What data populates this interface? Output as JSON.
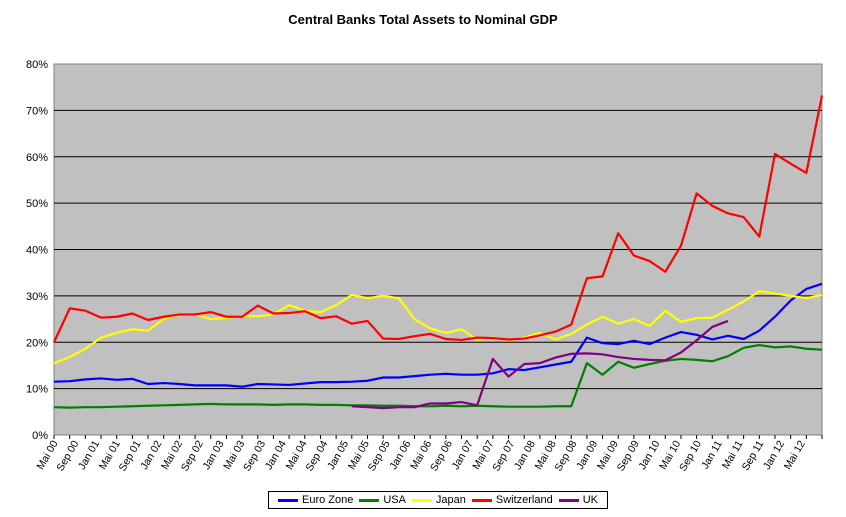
{
  "chart_data": {
    "type": "line",
    "title": "Central Banks Total Assets to Nominal GDP",
    "xlabel": "",
    "ylabel": "",
    "ylim": [
      0,
      80
    ],
    "y_ticks": [
      "0%",
      "10%",
      "20%",
      "30%",
      "40%",
      "50%",
      "60%",
      "70%",
      "80%"
    ],
    "x_tick_labels": [
      "Mai 00",
      "Sep 00",
      "Jan 01",
      "Mai 01",
      "Sep 01",
      "Jan 02",
      "Mai 02",
      "Sep 02",
      "Jan 03",
      "Mai 03",
      "Sep 03",
      "Jan 04",
      "Mai 04",
      "Sep 04",
      "Jan 05",
      "Mai 05",
      "Sep 05",
      "Jan 06",
      "Mai 06",
      "Sep 06",
      "Jan 07",
      "Mai 07",
      "Sep 07",
      "Jan 08",
      "Mai 08",
      "Sep 08",
      "Jan 09",
      "Mai 09",
      "Sep 09",
      "Jan 10",
      "Mai 10",
      "Sep 10",
      "Jan 11",
      "Mai 11",
      "Sep 11",
      "Jan 12",
      "Mai 12"
    ],
    "plot_background": "#c0c0c0",
    "grid": true,
    "legend_position": "bottom",
    "series": [
      {
        "name": "Euro Zone",
        "color": "#0000ff",
        "start_index": 0,
        "values": [
          11.5,
          11.6,
          12.0,
          12.2,
          11.9,
          12.1,
          11.0,
          11.2,
          11.0,
          10.7,
          10.7,
          10.7,
          10.4,
          11.0,
          10.9,
          10.8,
          11.1,
          11.4,
          11.4,
          11.5,
          11.7,
          12.4,
          12.4,
          12.7,
          13.0,
          13.2,
          13.0,
          13.0,
          13.3,
          14.2,
          14.0,
          14.6,
          15.2,
          15.8,
          21.0,
          19.8,
          19.6,
          20.3,
          19.6,
          21.0,
          22.2,
          21.6,
          20.6,
          21.4,
          20.7,
          22.5,
          25.5,
          29.0,
          31.5,
          32.6
        ]
      },
      {
        "name": "USA",
        "color": "#008000",
        "start_index": 0,
        "values": [
          6.0,
          5.9,
          6.0,
          6.0,
          6.1,
          6.2,
          6.3,
          6.4,
          6.5,
          6.6,
          6.7,
          6.6,
          6.6,
          6.6,
          6.5,
          6.6,
          6.6,
          6.5,
          6.5,
          6.4,
          6.4,
          6.3,
          6.3,
          6.2,
          6.2,
          6.3,
          6.2,
          6.3,
          6.2,
          6.1,
          6.1,
          6.1,
          6.2,
          6.2,
          15.5,
          13.0,
          15.8,
          14.5,
          15.3,
          16.0,
          16.4,
          16.2,
          15.9,
          17.0,
          18.8,
          19.4,
          18.9,
          19.1,
          18.6,
          18.4
        ]
      },
      {
        "name": "Japan",
        "color": "#ffff00",
        "start_index": 0,
        "values": [
          15.5,
          16.8,
          18.6,
          21.0,
          22.0,
          22.8,
          22.5,
          25.0,
          26.0,
          26.0,
          25.0,
          25.2,
          25.7,
          25.6,
          26.0,
          28.0,
          26.8,
          26.5,
          28.0,
          30.2,
          29.5,
          30.0,
          29.5,
          25.0,
          23.0,
          22.0,
          22.8,
          20.5,
          21.0,
          20.5,
          21.0,
          22.0,
          20.6,
          21.8,
          23.8,
          25.5,
          24.0,
          25.0,
          23.5,
          26.8,
          24.4,
          25.2,
          25.3,
          27.0,
          28.8,
          31.0,
          30.5,
          30.0,
          29.5,
          30.2
        ]
      },
      {
        "name": "Switzerland",
        "color": "#ff0000",
        "start_index": 0,
        "values": [
          20.0,
          27.3,
          26.8,
          25.3,
          25.5,
          26.2,
          24.8,
          25.5,
          26.0,
          26.0,
          26.5,
          25.5,
          25.5,
          27.9,
          26.2,
          26.3,
          26.7,
          25.2,
          25.6,
          24.0,
          24.6,
          20.8,
          20.7,
          21.3,
          21.8,
          20.7,
          20.5,
          21.0,
          20.9,
          20.6,
          20.8,
          21.5,
          22.3,
          23.8,
          33.8,
          34.2,
          43.5,
          38.7,
          37.5,
          35.2,
          40.8,
          52.1,
          49.4,
          47.8,
          47.0,
          42.8,
          60.6,
          58.5,
          56.5,
          73.2
        ]
      },
      {
        "name": "UK",
        "color": "#800080",
        "start_index": 19,
        "values": [
          6.2,
          6.0,
          5.8,
          6.0,
          6.0,
          6.8,
          6.8,
          7.1,
          6.4,
          16.4,
          12.6,
          15.3,
          15.5,
          16.7,
          17.5,
          17.6,
          17.4,
          16.8,
          16.4,
          16.2,
          16.1,
          17.8,
          20.4,
          23.3,
          24.6
        ]
      }
    ]
  }
}
